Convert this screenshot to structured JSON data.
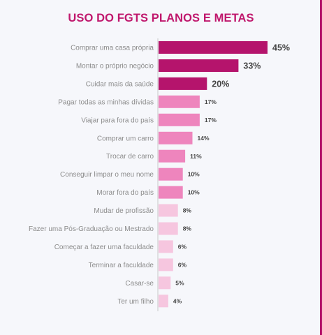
{
  "chart_data": {
    "type": "bar",
    "orientation": "horizontal",
    "title": "USO DO FGTS PLANOS E METAS",
    "xlabel": "",
    "ylabel": "",
    "xlim": [
      0,
      45
    ],
    "grid": false,
    "legend": "none",
    "categories": [
      "Comprar uma casa própria",
      "Montar o próprio negócio",
      "Cuidar mais da saúde",
      "Pagar todas as minhas dívidas",
      "Viajar para fora do país",
      "Comprar um carro",
      "Trocar de carro",
      "Conseguir limpar o meu nome",
      "Morar fora do país",
      "Mudar de profissão",
      "Fazer uma Pós-Graduação ou Mestrado",
      "Começar a fazer uma faculdade",
      "Terminar a faculdade",
      "Casar-se",
      "Ter um filho"
    ],
    "values": [
      45,
      33,
      20,
      17,
      17,
      14,
      11,
      10,
      10,
      8,
      8,
      6,
      6,
      5,
      4
    ],
    "value_labels": [
      "45%",
      "33%",
      "20%",
      "17%",
      "17%",
      "14%",
      "11%",
      "10%",
      "10%",
      "8%",
      "8%",
      "6%",
      "6%",
      "5%",
      "4%"
    ],
    "colors": {
      "title": "#c0186d",
      "bar_dark": "#b5146c",
      "bar_mid": "#ee85bd",
      "bar_light": "#f6c6df",
      "axis": "#c8c8c8",
      "edge": "#b3126a"
    }
  }
}
